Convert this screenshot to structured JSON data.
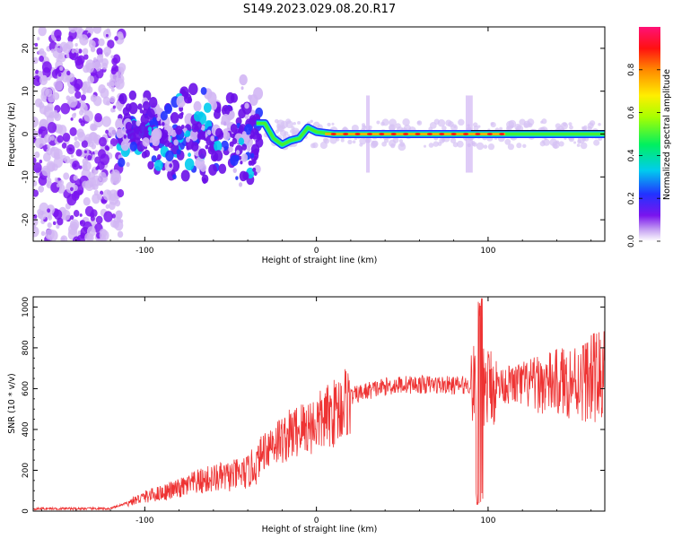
{
  "page_title": "S149.2023.029.08.20.R17",
  "chart_data": [
    {
      "type": "heatmap",
      "xlabel": "Height of straight line (km)",
      "ylabel": "Frequency (Hz)",
      "xlim": [
        -165,
        168
      ],
      "ylim": [
        -25,
        25
      ],
      "xticks": [
        -100,
        0,
        100
      ],
      "yticks": [
        -20,
        -10,
        0,
        10,
        20
      ],
      "colorbar": {
        "label": "Normalized spectral amplitude",
        "range": [
          0,
          1
        ],
        "ticks": [
          "0.0",
          "0.2",
          "0.4",
          "0.6",
          "0.8"
        ],
        "tick_values": [
          0,
          0.2,
          0.4,
          0.6,
          0.8
        ]
      },
      "signal_track": [
        {
          "x": -35,
          "y": 2.5
        },
        {
          "x": -30,
          "y": 2.5
        },
        {
          "x": -25,
          "y": -1
        },
        {
          "x": -20,
          "y": -2.5
        },
        {
          "x": -15,
          "y": -1.5
        },
        {
          "x": -10,
          "y": -1.0
        },
        {
          "x": -5,
          "y": 1.5
        },
        {
          "x": 0,
          "y": 0.5
        },
        {
          "x": 10,
          "y": 0
        },
        {
          "x": 50,
          "y": 0
        },
        {
          "x": 100,
          "y": 0
        },
        {
          "x": 168,
          "y": 0
        }
      ]
    },
    {
      "type": "line",
      "xlabel": "Height of straight line (km)",
      "ylabel": "SNR (10 * v/v)",
      "xlim": [
        -165,
        168
      ],
      "ylim": [
        0,
        1050
      ],
      "xticks": [
        -100,
        0,
        100
      ],
      "yticks": [
        0,
        200,
        400,
        600,
        800,
        1000
      ],
      "series": [
        {
          "color": "#ee3333",
          "x": [
            -165,
            -120,
            -110,
            -100,
            -90,
            -80,
            -70,
            -60,
            -50,
            -40,
            -35,
            -30,
            -25,
            -20,
            -10,
            0,
            10,
            20,
            30,
            40,
            50,
            60,
            70,
            80,
            90,
            95,
            100,
            105,
            110,
            120,
            130,
            140,
            150,
            160,
            165,
            168
          ],
          "y": [
            12,
            12,
            40,
            70,
            90,
            110,
            140,
            160,
            170,
            190,
            230,
            310,
            340,
            350,
            400,
            430,
            480,
            560,
            590,
            610,
            620,
            620,
            620,
            615,
            620,
            600,
            610,
            620,
            620,
            620,
            620,
            630,
            640,
            650,
            660,
            670
          ]
        }
      ]
    }
  ]
}
